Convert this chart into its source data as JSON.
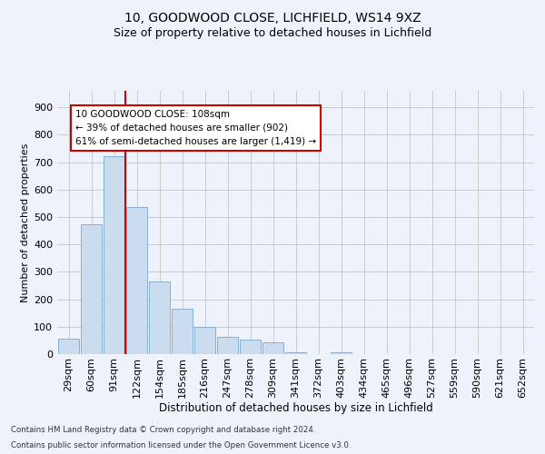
{
  "title1": "10, GOODWOOD CLOSE, LICHFIELD, WS14 9XZ",
  "title2": "Size of property relative to detached houses in Lichfield",
  "xlabel": "Distribution of detached houses by size in Lichfield",
  "ylabel": "Number of detached properties",
  "categories": [
    "29sqm",
    "60sqm",
    "91sqm",
    "122sqm",
    "154sqm",
    "185sqm",
    "216sqm",
    "247sqm",
    "278sqm",
    "309sqm",
    "341sqm",
    "372sqm",
    "403sqm",
    "434sqm",
    "465sqm",
    "496sqm",
    "527sqm",
    "559sqm",
    "590sqm",
    "621sqm",
    "652sqm"
  ],
  "bar_values": [
    55,
    475,
    722,
    537,
    265,
    165,
    100,
    62,
    52,
    42,
    8,
    0,
    8,
    0,
    0,
    0,
    0,
    0,
    0,
    0,
    0
  ],
  "bar_color": "#ccdcef",
  "bar_edge_color": "#85afd4",
  "grid_color": "#bbbbbb",
  "vline_color": "#cc0000",
  "vline_x": 2.48,
  "annotation_text": "10 GOODWOOD CLOSE: 108sqm\n← 39% of detached houses are smaller (902)\n61% of semi-detached houses are larger (1,419) →",
  "annotation_box_facecolor": "white",
  "annotation_box_edgecolor": "#cc0000",
  "ylim_max": 960,
  "yticks": [
    0,
    100,
    200,
    300,
    400,
    500,
    600,
    700,
    800,
    900
  ],
  "footnote1": "Contains HM Land Registry data © Crown copyright and database right 2024.",
  "footnote2": "Contains public sector information licensed under the Open Government Licence v3.0.",
  "bg_color": "#eef3fb",
  "title1_fontsize": 10,
  "title2_fontsize": 9,
  "ylabel_fontsize": 8,
  "xlabel_fontsize": 8.5,
  "tick_fontsize": 8,
  "annotation_fontsize": 7.5
}
